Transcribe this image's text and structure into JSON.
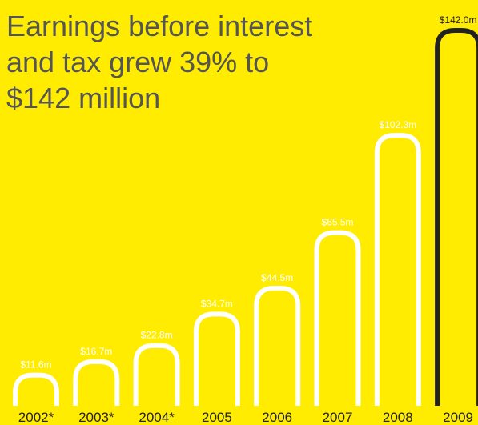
{
  "title_lines": [
    "Earnings before interest",
    "and tax grew 39% to",
    "$142 million"
  ],
  "colors": {
    "background": "#FFEC00",
    "bar_outline": "#FFFFFF",
    "highlight_outline": "#222222",
    "title_text": "#555555",
    "year_text": "#222222"
  },
  "chart_data": {
    "type": "bar",
    "title": "Earnings before interest and tax grew 39% to $142 million",
    "categories": [
      "2002*",
      "2003*",
      "2004*",
      "2005",
      "2006",
      "2007",
      "2008",
      "2009"
    ],
    "values": [
      11.6,
      16.7,
      22.8,
      34.7,
      44.5,
      65.5,
      102.3,
      142.0
    ],
    "value_labels": [
      "$11.6m",
      "$16.7m",
      "$22.8m",
      "$34.7m",
      "$44.5m",
      "$65.5m",
      "$102.3m",
      "$142.0m"
    ],
    "highlight_category": "2009",
    "style": "outlined rounded-top bars",
    "xlabel": "",
    "ylabel": "",
    "ylim": [
      0,
      142.0
    ],
    "grid": false,
    "legend": "none"
  }
}
